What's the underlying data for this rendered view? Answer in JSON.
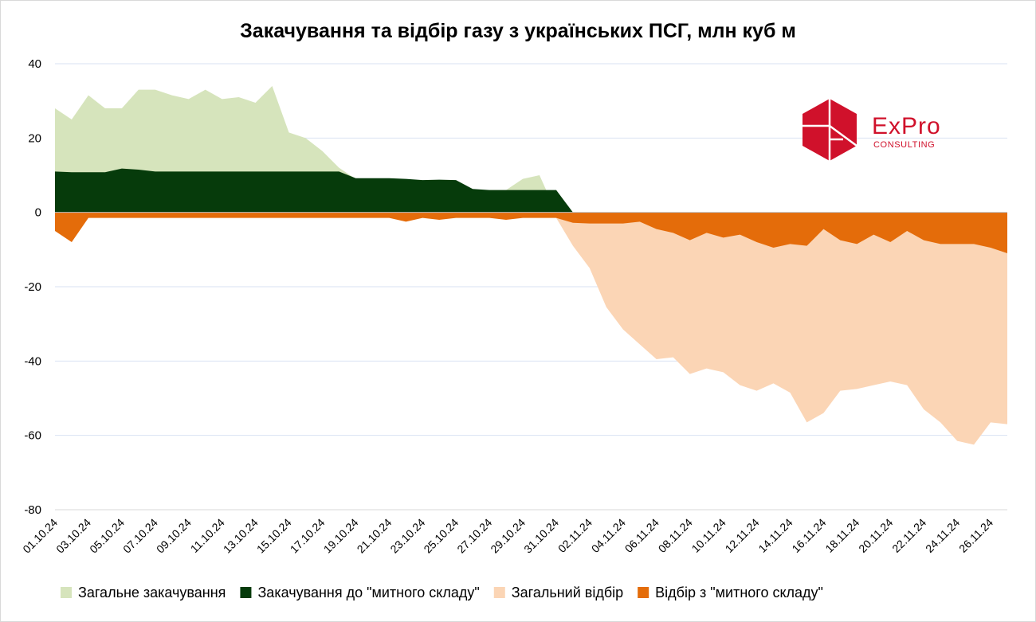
{
  "chart_data": {
    "type": "area",
    "title": "Закачування та відбір газу з українських ПСГ, млн куб м",
    "xlabel": "",
    "ylabel": "",
    "ylim": [
      -80,
      40
    ],
    "yticks": [
      40,
      20,
      0,
      -20,
      -40,
      -60,
      -80
    ],
    "grid": true,
    "legend_position": "bottom",
    "x": [
      "01.10.24",
      "02.10.24",
      "03.10.24",
      "04.10.24",
      "05.10.24",
      "06.10.24",
      "07.10.24",
      "08.10.24",
      "09.10.24",
      "10.10.24",
      "11.10.24",
      "12.10.24",
      "13.10.24",
      "14.10.24",
      "15.10.24",
      "16.10.24",
      "17.10.24",
      "18.10.24",
      "19.10.24",
      "20.10.24",
      "21.10.24",
      "22.10.24",
      "23.10.24",
      "24.10.24",
      "25.10.24",
      "26.10.24",
      "27.10.24",
      "28.10.24",
      "29.10.24",
      "30.10.24",
      "31.10.24",
      "01.11.24",
      "02.11.24",
      "03.11.24",
      "04.11.24",
      "05.11.24",
      "06.11.24",
      "07.11.24",
      "08.11.24",
      "09.11.24",
      "10.11.24",
      "11.11.24",
      "12.11.24",
      "13.11.24",
      "14.11.24",
      "15.11.24",
      "16.11.24",
      "17.11.24",
      "18.11.24",
      "19.11.24",
      "20.11.24",
      "21.11.24",
      "22.11.24",
      "23.11.24",
      "24.11.24",
      "25.11.24",
      "26.11.24",
      "27.11.24"
    ],
    "x_tick_labels": [
      "01.10.24",
      "03.10.24",
      "05.10.24",
      "07.10.24",
      "09.10.24",
      "11.10.24",
      "13.10.24",
      "15.10.24",
      "17.10.24",
      "19.10.24",
      "21.10.24",
      "23.10.24",
      "25.10.24",
      "27.10.24",
      "29.10.24",
      "31.10.24",
      "02.11.24",
      "04.11.24",
      "06.11.24",
      "08.11.24",
      "10.11.24",
      "12.11.24",
      "14.11.24",
      "16.11.24",
      "18.11.24",
      "20.11.24",
      "22.11.24",
      "24.11.24",
      "26.11.24"
    ],
    "series": [
      {
        "name": "Загальне закачування",
        "color": "#d6e4bc",
        "values": [
          28,
          25,
          31.5,
          28,
          28,
          33,
          33,
          31.5,
          30.5,
          33,
          30.5,
          31,
          29.5,
          34,
          21.5,
          20,
          16.5,
          12,
          9,
          9,
          9,
          8.5,
          8.5,
          8.5,
          6,
          6,
          6,
          6,
          9,
          10,
          0,
          0,
          0,
          0,
          0,
          0,
          0,
          0,
          0,
          0,
          0,
          0,
          0,
          0,
          0,
          0,
          0,
          0,
          0,
          0,
          0,
          0,
          0,
          0,
          0,
          0,
          0,
          0
        ]
      },
      {
        "name": "Закачування до \"митного складу\"",
        "color": "#063b0b",
        "values": [
          11,
          10.8,
          10.8,
          10.8,
          11.8,
          11.5,
          11,
          11,
          11,
          11,
          11,
          11,
          11,
          11,
          11,
          11,
          11,
          11,
          9.2,
          9.2,
          9.2,
          9,
          8.7,
          8.8,
          8.7,
          6.3,
          6,
          6,
          6,
          6,
          6,
          0,
          0,
          0,
          0,
          0,
          0,
          0,
          0,
          0,
          0,
          0,
          0,
          0,
          0,
          0,
          0,
          0,
          0,
          0,
          0,
          0,
          0,
          0,
          0,
          0,
          0,
          0
        ]
      },
      {
        "name": "Загальний відбір",
        "color": "#fbd5b5",
        "values": [
          -1,
          -1,
          -1,
          -1,
          -1,
          -1,
          -1,
          -1,
          -1,
          -1,
          -1,
          -1,
          -1,
          -1,
          -1,
          -1,
          -1,
          -1,
          -1,
          -1,
          -1,
          -1,
          -1,
          -1,
          -1,
          -1,
          -1,
          -1,
          -1,
          -1,
          -1.5,
          -9,
          -15,
          -25.5,
          -31.5,
          -35.5,
          -39.5,
          -39,
          -43.5,
          -42,
          -43,
          -46.5,
          -48,
          -46,
          -48.5,
          -56.5,
          -54,
          -48,
          -47.5,
          -46.5,
          -45.5,
          -46.5,
          -53,
          -56.5,
          -61.5,
          -62.5,
          -56.5,
          -57
        ]
      },
      {
        "name": "Відбір з \"митного складу\"",
        "color": "#e46c0a",
        "values": [
          -5,
          -8,
          -1.5,
          -1.5,
          -1.5,
          -1.5,
          -1.5,
          -1.5,
          -1.5,
          -1.5,
          -1.5,
          -1.5,
          -1.5,
          -1.5,
          -1.5,
          -1.5,
          -1.5,
          -1.5,
          -1.5,
          -1.5,
          -1.5,
          -2.5,
          -1.5,
          -2,
          -1.5,
          -1.5,
          -1.5,
          -2,
          -1.5,
          -1.5,
          -1.5,
          -2.8,
          -3,
          -3,
          -3,
          -2.5,
          -4.5,
          -5.5,
          -7.5,
          -5.5,
          -6.8,
          -6,
          -8,
          -9.5,
          -8.5,
          -9,
          -4.5,
          -7.5,
          -8.5,
          -6,
          -8,
          -5,
          -7.5,
          -8.5,
          -8.5,
          -8.5,
          -9.5,
          -11
        ]
      }
    ]
  },
  "logo": {
    "name": "ExPro",
    "sub": "CONSULTING",
    "color": "#d0112b"
  }
}
